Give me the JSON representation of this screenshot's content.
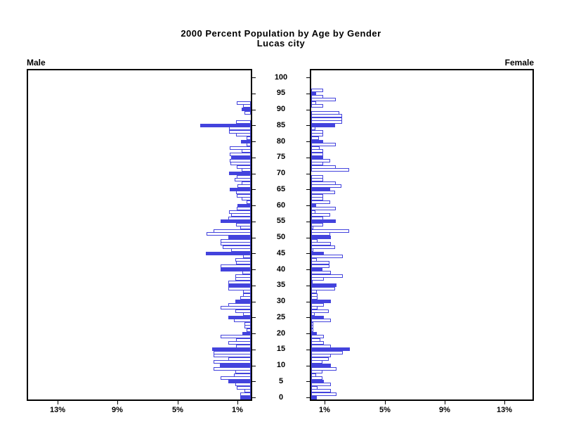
{
  "title": {
    "line1": "2000 Percent Population by Age by Gender",
    "line2": "Lucas city"
  },
  "panels": {
    "male_label": "Male",
    "female_label": "Female"
  },
  "colors": {
    "bar_blue": "#4343dd",
    "bar_outline_fill": "#ffffff",
    "axis_black": "#000000"
  },
  "chart_data": {
    "type": "bar",
    "subtype": "population-pyramid",
    "title": "2000 Percent Population by Age by Gender",
    "subtitle": "Lucas city",
    "xlabel_unit": "%",
    "x_max_each_side": 15.1,
    "x_tick_values": [
      1,
      5,
      9,
      13
    ],
    "male_x_tick_labels": [
      "13%",
      "9%",
      "5%",
      "1%"
    ],
    "female_x_tick_labels": [
      "1%",
      "5%",
      "9%",
      "13%"
    ],
    "age_min": 0,
    "age_max": 100,
    "age_tick_interval": 5,
    "age_tick_labels": [
      "0",
      "5",
      "10",
      "15",
      "20",
      "25",
      "30",
      "35",
      "40",
      "45",
      "50",
      "55",
      "60",
      "65",
      "70",
      "75",
      "80",
      "85",
      "90",
      "95",
      "100"
    ],
    "highlight_rule": "ages divisible by 5 are drawn as solid filled bars; other ages are white bars with blue outline",
    "series": [
      {
        "name": "Male",
        "side": "left",
        "percent_by_age": [
          0.7,
          0.7,
          0.4,
          0.95,
          1.05,
          1.5,
          2.0,
          1.15,
          1.05,
          2.5,
          2.05,
          2.5,
          1.5,
          2.5,
          2.5,
          2.6,
          1.0,
          1.5,
          1.0,
          2.0,
          0.55,
          0.3,
          0.4,
          0.4,
          1.15,
          1.5,
          0.5,
          1.05,
          2.0,
          1.5,
          1.05,
          0.7,
          0.5,
          0.5,
          1.5,
          1.5,
          1.5,
          1.05,
          1.05,
          0.55,
          2.0,
          2.0,
          1.0,
          1.05,
          0.5,
          3.0,
          1.3,
          1.9,
          2.0,
          2.0,
          1.5,
          2.95,
          2.5,
          0.7,
          1.0,
          2.0,
          1.5,
          1.3,
          1.45,
          0.95,
          0.9,
          0.3,
          0.6,
          0.95,
          1.0,
          1.4,
          0.9,
          0.6,
          1.1,
          0.95,
          1.45,
          0.6,
          0.95,
          1.35,
          1.4,
          1.3,
          1.4,
          0.6,
          1.43,
          0.3,
          0.65,
          0.3,
          1.0,
          1.44,
          1.44,
          3.4,
          1.0,
          0.0,
          0.0,
          0.4,
          0.6,
          0.5,
          0.93,
          0.0,
          0.0,
          0.0,
          0.0,
          0.0,
          0.0,
          0.0,
          0.0
        ]
      },
      {
        "name": "Female",
        "side": "right",
        "percent_by_age": [
          0.39,
          1.69,
          1.3,
          0.44,
          1.3,
          0.83,
          0.75,
          0.35,
          0.75,
          1.69,
          1.3,
          0.75,
          1.18,
          1.3,
          2.09,
          2.59,
          1.3,
          0.86,
          0.63,
          0.86,
          0.39,
          0.15,
          0.15,
          0.15,
          1.3,
          0.83,
          0.24,
          1.18,
          0.44,
          0.83,
          1.3,
          0.44,
          0.44,
          0.39,
          1.61,
          1.68,
          0.1,
          0.83,
          2.09,
          1.3,
          0.75,
          1.22,
          1.22,
          0.39,
          2.09,
          0.83,
          0.15,
          1.61,
          1.3,
          0.44,
          1.33,
          1.25,
          2.54,
          0.15,
          0.78,
          1.65,
          0.82,
          1.25,
          0.3,
          1.65,
          0.35,
          1.25,
          0.82,
          0.82,
          1.6,
          1.25,
          2.04,
          1.65,
          0.82,
          0.82,
          0.0,
          2.54,
          1.65,
          0.8,
          1.25,
          0.82,
          0.82,
          0.82,
          0.58,
          1.65,
          0.8,
          0.5,
          0.82,
          0.82,
          0.3,
          1.6,
          2.05,
          2.05,
          2.05,
          1.9,
          0.0,
          0.82,
          0.35,
          1.65,
          0.82,
          0.35,
          0.82,
          0.0,
          0.0,
          0.0,
          0.0
        ]
      }
    ]
  }
}
